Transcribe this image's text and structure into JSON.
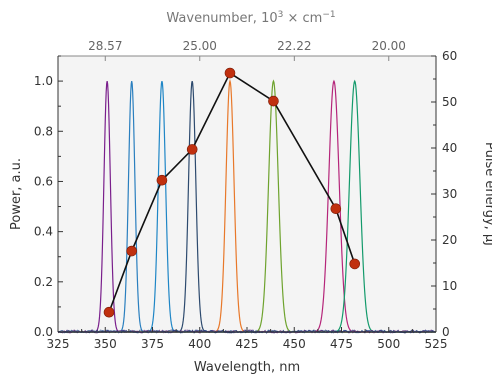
{
  "chart_data": {
    "type": "line",
    "xlabel": "Wavelength, nm",
    "ylabel": "Power, a.u.",
    "y2label": "Pulse energy, μJ",
    "top_axis": {
      "label_prefix": "Wavenumber, 10",
      "label_sup": "3",
      "label_suffix": " × cm",
      "label_sup2": "−1",
      "ticks": [
        {
          "wavenumber": 28.57,
          "label": "28.57"
        },
        {
          "wavenumber": 25.0,
          "label": "25.00"
        },
        {
          "wavenumber": 22.22,
          "label": "22.22"
        },
        {
          "wavenumber": 20.0,
          "label": "20.00"
        }
      ]
    },
    "xlim": [
      325,
      525
    ],
    "ylim": [
      0,
      1.1
    ],
    "y2lim": [
      0,
      60
    ],
    "x_ticks": [
      325,
      350,
      375,
      400,
      425,
      450,
      475,
      500,
      525
    ],
    "y_ticks": [
      0.0,
      0.2,
      0.4,
      0.6,
      0.8,
      1.0
    ],
    "y_tick_labels": [
      "0.0",
      "0.2",
      "0.4",
      "0.6",
      "0.8",
      "1.0"
    ],
    "y2_ticks": [
      0,
      10,
      20,
      30,
      40,
      50,
      60
    ],
    "grid": false,
    "background": "#f4f4f4",
    "spectra": [
      {
        "center": 351,
        "fwhm": 4.0,
        "peak": 1.0,
        "color": "#7a1f8c"
      },
      {
        "center": 364,
        "fwhm": 4.0,
        "peak": 1.0,
        "color": "#2a7fbf"
      },
      {
        "center": 380,
        "fwhm": 4.5,
        "peak": 1.0,
        "color": "#1f86c6"
      },
      {
        "center": 396,
        "fwhm": 4.5,
        "peak": 1.0,
        "color": "#2d4a6e"
      },
      {
        "center": 416,
        "fwhm": 5.0,
        "peak": 1.0,
        "color": "#e8782a"
      },
      {
        "center": 439,
        "fwhm": 6.0,
        "peak": 1.0,
        "color": "#6ea32e"
      },
      {
        "center": 471,
        "fwhm": 6.5,
        "peak": 1.0,
        "color": "#b5257a"
      },
      {
        "center": 482,
        "fwhm": 6.5,
        "peak": 1.0,
        "color": "#139a6b"
      }
    ],
    "series": [
      {
        "values_axis": "right",
        "x": [
          352,
          364,
          380,
          396,
          416,
          439,
          472,
          482
        ],
        "y": [
          4.3,
          17.6,
          33.0,
          39.7,
          56.3,
          50.2,
          26.8,
          14.8
        ],
        "line_color": "#111111",
        "marker_color": "#c0300f"
      }
    ]
  }
}
